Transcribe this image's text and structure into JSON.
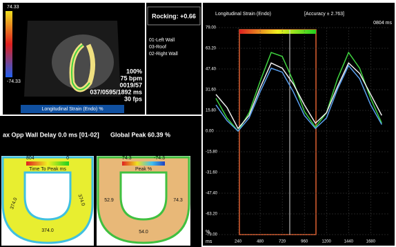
{
  "echo_view": {
    "scale_top": "74.33",
    "scale_bottom": "-74.33",
    "stats": [
      "100%",
      "75 bpm",
      "0019/57",
      "037/0595/1892 ms",
      "30 fps"
    ],
    "label": "Longitudinal Strain (Endo) %"
  },
  "rocking": "Rocking: +0.66",
  "summary": {
    "delay": "ax Opp Wall Delay 0.0 ms [01-02]",
    "global_peak": "Global Peak 60.39 %"
  },
  "time_to_peak": {
    "scale_left": "804",
    "scale_right": "0",
    "label": "Time To Peak ms",
    "segments": [
      "374.0",
      "374.0",
      "374.0"
    ]
  },
  "peak": {
    "scale_left": "74.3",
    "scale_right": "-74.3",
    "label": "Peak %",
    "segments": [
      "52.9",
      "74.3",
      "54.0"
    ]
  },
  "chart_data": {
    "type": "line",
    "title": "Longitudinal Strain (Endo)",
    "subtitle": "[Accuracy ± 2.763]",
    "annotation": "0804 ms",
    "x_label": "ms",
    "y_label": "%",
    "x": [
      0,
      120,
      240,
      360,
      480,
      600,
      720,
      840,
      960,
      1080,
      1200,
      1320,
      1440,
      1560,
      1680,
      1800
    ],
    "series": [
      {
        "name": "01-Left Wall",
        "color": "#3fd23f",
        "values": [
          25,
          10,
          0,
          14,
          38,
          60,
          57,
          38,
          15,
          3,
          14,
          40,
          60,
          48,
          25,
          6
        ]
      },
      {
        "name": "03-Roof",
        "color": "#f0f0f0",
        "values": [
          28,
          18,
          2,
          12,
          33,
          52,
          48,
          36,
          20,
          6,
          14,
          34,
          52,
          44,
          28,
          12
        ]
      },
      {
        "name": "02-Right Wall",
        "color": "#5aa0f0",
        "values": [
          20,
          8,
          0,
          10,
          30,
          48,
          45,
          30,
          12,
          2,
          10,
          32,
          50,
          40,
          20,
          5
        ]
      }
    ],
    "xlim": [
      0,
      1880
    ],
    "ylim": [
      -79,
      79
    ],
    "xticks": [
      240,
      480,
      720,
      960,
      1200,
      1440,
      1680
    ],
    "yticks": [
      {
        "value": 79,
        "label": "79.00"
      },
      {
        "value": 63.2,
        "label": "63.20"
      },
      {
        "value": 47.4,
        "label": "47.40"
      },
      {
        "value": 31.6,
        "label": "31.60"
      },
      {
        "value": 15.8,
        "label": "15.80"
      },
      {
        "value": 0,
        "label": "0.00"
      },
      {
        "value": -15.8,
        "label": "-15.80"
      },
      {
        "value": -31.6,
        "label": "-31.60"
      },
      {
        "value": -47.4,
        "label": "-47.40"
      },
      {
        "value": -63.2,
        "label": "-63.20"
      },
      {
        "value": -79,
        "label": "-79.00"
      }
    ],
    "grid": true
  }
}
